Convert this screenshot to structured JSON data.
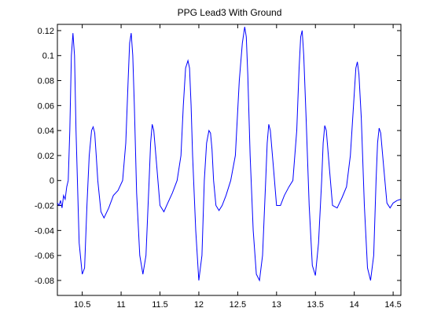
{
  "chart_data": {
    "type": "line",
    "title": "PPG Lead3 With Ground",
    "xlabel": "",
    "ylabel": "",
    "xlim": [
      10.18,
      14.6
    ],
    "ylim": [
      -0.092,
      0.125
    ],
    "grid": false,
    "x_ticks": [
      10.5,
      11,
      11.5,
      12,
      12.5,
      13,
      13.5,
      14,
      14.5
    ],
    "x_tick_labels": [
      "10.5",
      "11",
      "11.5",
      "12",
      "12.5",
      "13",
      "13.5",
      "14",
      "14.5"
    ],
    "y_ticks": [
      -0.08,
      -0.06,
      -0.04,
      -0.02,
      0,
      0.02,
      0.04,
      0.06,
      0.08,
      0.1,
      0.12
    ],
    "y_tick_labels": [
      "-0.08",
      "-0.06",
      "-0.04",
      "-0.02",
      "0",
      "0.02",
      "0.04",
      "0.06",
      "0.08",
      "0.1",
      "0.12"
    ],
    "line_color": "#0000ff",
    "series": [
      {
        "x": [
          10.18,
          10.2,
          10.22,
          10.24,
          10.26,
          10.28,
          10.3,
          10.32,
          10.34,
          10.36,
          10.38,
          10.4,
          10.42,
          10.46,
          10.5,
          10.53,
          10.56,
          10.59,
          10.62,
          10.64,
          10.66,
          10.68,
          10.7,
          10.74,
          10.78,
          10.84,
          10.9,
          10.96,
          11.02,
          11.06,
          11.09,
          11.11,
          11.13,
          11.15,
          11.17,
          11.2,
          11.24,
          11.28,
          11.32,
          11.36,
          11.38,
          11.4,
          11.42,
          11.46,
          11.5,
          11.55,
          11.6,
          11.66,
          11.72,
          11.77,
          11.8,
          11.83,
          11.86,
          11.88,
          11.9,
          11.92,
          11.96,
          12.0,
          12.04,
          12.07,
          12.1,
          12.13,
          12.15,
          12.17,
          12.19,
          12.22,
          12.26,
          12.3,
          12.35,
          12.41,
          12.47,
          12.52,
          12.56,
          12.59,
          12.61,
          12.63,
          12.66,
          12.7,
          12.74,
          12.78,
          12.82,
          12.86,
          12.88,
          12.9,
          12.92,
          12.96,
          13.0,
          13.05,
          13.1,
          13.16,
          13.21,
          13.26,
          13.29,
          13.31,
          13.33,
          13.35,
          13.38,
          13.42,
          13.46,
          13.5,
          13.54,
          13.58,
          13.6,
          13.62,
          13.64,
          13.68,
          13.72,
          13.78,
          13.84,
          13.9,
          13.95,
          13.99,
          14.02,
          14.04,
          14.06,
          14.09,
          14.13,
          14.17,
          14.21,
          14.25,
          14.28,
          14.3,
          14.32,
          14.34,
          14.38,
          14.42,
          14.46,
          14.5,
          14.55,
          14.6
        ],
        "y": [
          -0.018,
          -0.02,
          -0.016,
          -0.022,
          -0.012,
          -0.015,
          -0.005,
          0.0,
          0.04,
          0.1,
          0.118,
          0.1,
          0.04,
          -0.05,
          -0.075,
          -0.07,
          -0.02,
          0.02,
          0.04,
          0.043,
          0.038,
          0.02,
          0.0,
          -0.025,
          -0.03,
          -0.022,
          -0.012,
          -0.008,
          0.0,
          0.03,
          0.08,
          0.11,
          0.118,
          0.1,
          0.06,
          -0.01,
          -0.06,
          -0.075,
          -0.06,
          0.0,
          0.03,
          0.045,
          0.04,
          0.01,
          -0.02,
          -0.025,
          -0.018,
          -0.01,
          0.0,
          0.02,
          0.06,
          0.09,
          0.096,
          0.09,
          0.06,
          0.02,
          -0.04,
          -0.08,
          -0.06,
          0.0,
          0.03,
          0.04,
          0.038,
          0.025,
          0.0,
          -0.02,
          -0.024,
          -0.02,
          -0.012,
          0.0,
          0.02,
          0.08,
          0.11,
          0.123,
          0.115,
          0.085,
          0.02,
          -0.04,
          -0.075,
          -0.08,
          -0.06,
          0.0,
          0.03,
          0.045,
          0.04,
          0.01,
          -0.02,
          -0.02,
          -0.012,
          -0.005,
          0.0,
          0.04,
          0.09,
          0.115,
          0.12,
          0.1,
          0.05,
          -0.02,
          -0.068,
          -0.076,
          -0.05,
          0.0,
          0.03,
          0.044,
          0.04,
          0.01,
          -0.02,
          -0.022,
          -0.014,
          -0.005,
          0.02,
          0.06,
          0.09,
          0.095,
          0.085,
          0.05,
          -0.02,
          -0.07,
          -0.08,
          -0.06,
          0.0,
          0.03,
          0.042,
          0.038,
          0.01,
          -0.018,
          -0.022,
          -0.018,
          -0.016,
          -0.015
        ]
      }
    ]
  }
}
